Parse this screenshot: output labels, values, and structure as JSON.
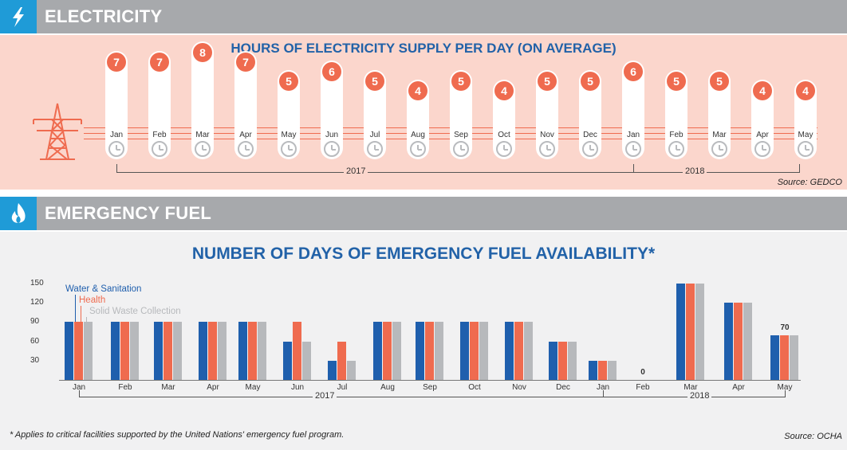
{
  "electricity": {
    "header": "ELECTRICITY",
    "icon": "lightning-icon",
    "chart_data": {
      "type": "bar",
      "title": "HOURS OF ELECTRICITY SUPPLY PER DAY (ON AVERAGE)",
      "categories": [
        "Jan",
        "Feb",
        "Mar",
        "Apr",
        "May",
        "Jun",
        "Jul",
        "Aug",
        "Sep",
        "Oct",
        "Nov",
        "Dec",
        "Jan",
        "Feb",
        "Mar",
        "Apr",
        "May"
      ],
      "values": [
        7,
        7,
        8,
        7,
        5,
        6,
        5,
        4,
        5,
        4,
        5,
        5,
        6,
        5,
        5,
        4,
        4
      ],
      "years": [
        {
          "label": "2017",
          "start": 0,
          "end": 11
        },
        {
          "label": "2018",
          "start": 12,
          "end": 16
        }
      ]
    },
    "source": "Source: GEDCO"
  },
  "fuel": {
    "header": "EMERGENCY FUEL",
    "icon": "flame-icon",
    "chart_data": {
      "type": "bar",
      "title": "NUMBER OF DAYS OF EMERGENCY FUEL AVAILABILITY*",
      "categories": [
        "Jan",
        "Feb",
        "Mar",
        "Apr",
        "May",
        "Jun",
        "Jul",
        "Aug",
        "Sep",
        "Oct",
        "Nov",
        "Dec",
        "Jan",
        "Feb",
        "Mar",
        "Apr",
        "May"
      ],
      "series": [
        {
          "name": "Water & Sanitation",
          "color": "#1f5fad",
          "values": [
            90,
            90,
            90,
            90,
            90,
            60,
            30,
            90,
            90,
            90,
            90,
            60,
            30,
            0,
            150,
            120,
            70
          ]
        },
        {
          "name": "Health",
          "color": "#ef6b4f",
          "values": [
            90,
            90,
            90,
            90,
            90,
            90,
            60,
            90,
            90,
            90,
            90,
            60,
            30,
            0,
            150,
            120,
            70
          ]
        },
        {
          "name": "Solid Waste Collection",
          "color": "#b7b9bc",
          "values": [
            90,
            90,
            90,
            90,
            90,
            60,
            30,
            90,
            90,
            90,
            90,
            60,
            30,
            0,
            150,
            120,
            70
          ]
        }
      ],
      "yticks": [
        "30",
        "60",
        "90",
        "120",
        "150"
      ],
      "ylim": [
        0,
        150
      ],
      "data_labels": [
        {
          "index": 13,
          "text": "0"
        },
        {
          "index": 16,
          "text": "70"
        }
      ],
      "years": [
        {
          "label": "2017",
          "start": 0,
          "end": 11
        },
        {
          "label": "2018",
          "start": 12,
          "end": 16
        }
      ]
    },
    "footnote": "* Applies to critical facilities supported by the United Nations' emergency fuel program.",
    "source": "Source: OCHA"
  }
}
